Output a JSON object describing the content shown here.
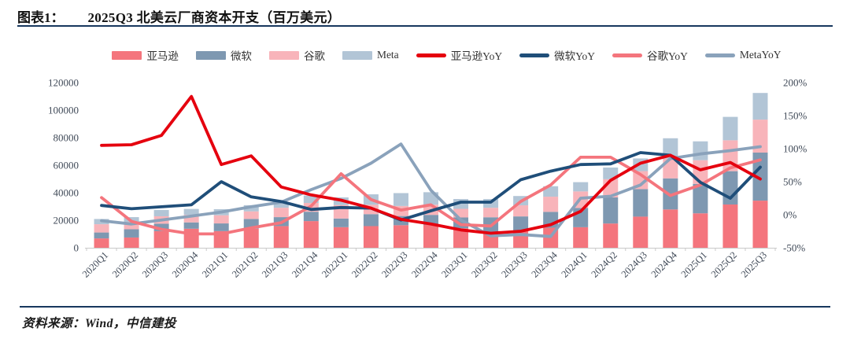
{
  "header": {
    "figure_label": "图表1：",
    "title": "2025Q3 北美云厂商资本开支（百万美元）"
  },
  "footer": {
    "source_label": "资料来源：Wind，中信建投"
  },
  "theme": {
    "rule_color": "#17375e",
    "axis_text_color": "#404a58",
    "axis_line_color": "#c9c9c9"
  },
  "chart_data": {
    "type": "bar",
    "subtype": "stacked-bar-with-lines",
    "title": "2025Q3 北美云厂商资本开支（百万美元）",
    "xlabel": "",
    "ylabel_left": "",
    "ylabel_right": "",
    "grid": false,
    "legend_position": "top",
    "ylim_left": [
      0,
      120000
    ],
    "ylim_right_percent": [
      -50,
      200
    ],
    "left_ticks": [
      0,
      20000,
      40000,
      60000,
      80000,
      100000,
      120000
    ],
    "right_ticks": [
      "-50%",
      "0%",
      "50%",
      "100%",
      "150%",
      "200%"
    ],
    "right_tick_values": [
      -50,
      0,
      50,
      100,
      150,
      200
    ],
    "categories": [
      "2020Q1",
      "2020Q2",
      "2020Q3",
      "2020Q4",
      "2021Q1",
      "2021Q2",
      "2021Q3",
      "2021Q4",
      "2022Q1",
      "2022Q2",
      "2022Q3",
      "2022Q4",
      "2023Q1",
      "2023Q2",
      "2023Q3",
      "2023Q4",
      "2024Q1",
      "2024Q2",
      "2024Q3",
      "2024Q4",
      "2025Q1",
      "2025Q2",
      "2025Q3"
    ],
    "bar_series": [
      {
        "key": "amazon",
        "name": "亚马逊",
        "color": "#F4757D",
        "values": [
          6795,
          7459,
          12063,
          13823,
          12082,
          13851,
          15748,
          19372,
          14951,
          15724,
          16378,
          16592,
          14207,
          11455,
          12479,
          14588,
          14925,
          17620,
          22620,
          27834,
          25019,
          31437,
          34238
        ]
      },
      {
        "key": "microsoft",
        "name": "微软",
        "color": "#7E98B1",
        "values": [
          4300,
          6000,
          5400,
          4600,
          5600,
          7100,
          6500,
          6800,
          6300,
          8700,
          6700,
          7300,
          7800,
          10700,
          10300,
          11500,
          14000,
          19000,
          20000,
          22600,
          21400,
          24200,
          34900
        ]
      },
      {
        "key": "google",
        "name": "谷歌",
        "color": "#F8B4BA",
        "values": [
          6005,
          5391,
          5406,
          5479,
          5942,
          5496,
          6819,
          6383,
          9786,
          6828,
          7276,
          7425,
          6289,
          6888,
          8055,
          11019,
          12012,
          13186,
          13061,
          14276,
          17197,
          22446,
          23950
        ]
      },
      {
        "key": "meta",
        "name": "Meta",
        "color": "#B2C5D6",
        "values": [
          3807,
          3405,
          4551,
          4294,
          4406,
          4495,
          4257,
          5370,
          5549,
          7570,
          9355,
          9042,
          7112,
          6354,
          6763,
          7592,
          6721,
          8473,
          9210,
          14840,
          13690,
          17010,
          19370
        ]
      }
    ],
    "line_series": [
      {
        "key": "meta-yoy",
        "name": "MetaYoY",
        "color": "#8AA2BB",
        "unit": "%",
        "values": [
          -9,
          -14,
          -8,
          -2,
          4,
          12,
          19,
          38,
          55,
          78,
          107,
          37,
          -8,
          -32,
          -30,
          -33,
          25,
          28,
          45,
          85,
          92,
          97,
          103
        ]
      },
      {
        "key": "google-yoy",
        "name": "谷歌YoY",
        "color": "#F4757D",
        "unit": "%",
        "values": [
          26,
          -10,
          -22,
          -29,
          -29,
          -20,
          -12,
          13,
          62,
          23,
          7,
          15,
          -15,
          -17,
          20,
          45,
          87,
          87,
          61,
          29,
          45,
          71,
          83
        ]
      },
      {
        "key": "microsoft-yoy",
        "name": "微软YoY",
        "color": "#1F4E79",
        "unit": "%",
        "values": [
          14,
          9,
          12,
          15,
          50,
          27,
          20,
          8,
          11,
          10,
          -8,
          6,
          19,
          19,
          53,
          66,
          76,
          77,
          94,
          90,
          49,
          25,
          72
        ]
      },
      {
        "key": "amazon-yoy",
        "name": "亚马逊YoY",
        "color": "#E5000E",
        "unit": "%",
        "values": [
          105,
          106,
          120,
          179,
          76,
          89,
          42,
          30,
          22,
          10,
          -7,
          -14,
          -23,
          -28,
          -25,
          -15,
          5,
          52,
          78,
          90,
          68,
          79,
          54
        ]
      }
    ],
    "legend_order": [
      "amazon",
      "microsoft",
      "google",
      "meta",
      "amazon-yoy",
      "microsoft-yoy",
      "google-yoy",
      "meta-yoy"
    ]
  }
}
